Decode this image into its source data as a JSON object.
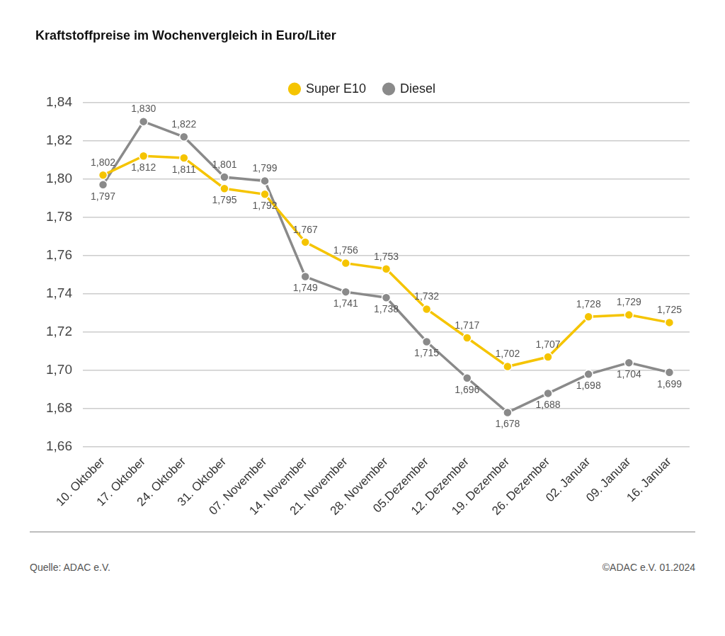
{
  "chart_data": {
    "type": "line",
    "title": "Kraftstoffpreise im Wochenvergleich in Euro/Liter",
    "categories": [
      "10. Oktober",
      "17. Oktober",
      "24. Oktober",
      "31. Oktober",
      "07. November",
      "14. November",
      "21. November",
      "28. November",
      "05.Dezember",
      "12. Dezember",
      "19. Dezember",
      "26. Dezember",
      "02. Januar",
      "09. Januar",
      "16. Januar"
    ],
    "series": [
      {
        "name": "Super E10",
        "color": "#f5c400",
        "values": [
          1.802,
          1.812,
          1.811,
          1.795,
          1.792,
          1.767,
          1.756,
          1.753,
          1.732,
          1.717,
          1.702,
          1.707,
          1.728,
          1.729,
          1.725
        ],
        "value_labels": [
          "1,802",
          "1,812",
          "1,811",
          "1,795",
          "1,792",
          "1,767",
          "1,756",
          "1,753",
          "1,732",
          "1,717",
          "1,702",
          "1,707",
          "1,728",
          "1,729",
          "1,725"
        ]
      },
      {
        "name": "Diesel",
        "color": "#8a8a8a",
        "values": [
          1.797,
          1.83,
          1.822,
          1.801,
          1.799,
          1.749,
          1.741,
          1.738,
          1.715,
          1.696,
          1.678,
          1.688,
          1.698,
          1.704,
          1.699
        ],
        "value_labels": [
          "1,797",
          "1,830",
          "1,822",
          "1,801",
          "1,799",
          "1,749",
          "1,741",
          "1,738",
          "1,715",
          "1,696",
          "1,678",
          "1,688",
          "1,698",
          "1,704",
          "1,699"
        ]
      }
    ],
    "ylim": [
      1.66,
      1.84
    ],
    "yticks": [
      {
        "value": 1.66,
        "label": "1,66"
      },
      {
        "value": 1.68,
        "label": "1,68"
      },
      {
        "value": 1.7,
        "label": "1,70"
      },
      {
        "value": 1.72,
        "label": "1,72"
      },
      {
        "value": 1.74,
        "label": "1,74"
      },
      {
        "value": 1.76,
        "label": "1,76"
      },
      {
        "value": 1.78,
        "label": "1,78"
      },
      {
        "value": 1.8,
        "label": "1,80"
      },
      {
        "value": 1.82,
        "label": "1,82"
      },
      {
        "value": 1.84,
        "label": "1,84"
      }
    ],
    "grid": true,
    "legend": "top",
    "data_labels": true,
    "marker": "circle",
    "source": "Quelle: ADAC e.V.",
    "credit": "©ADAC e.V. 01.2024"
  }
}
